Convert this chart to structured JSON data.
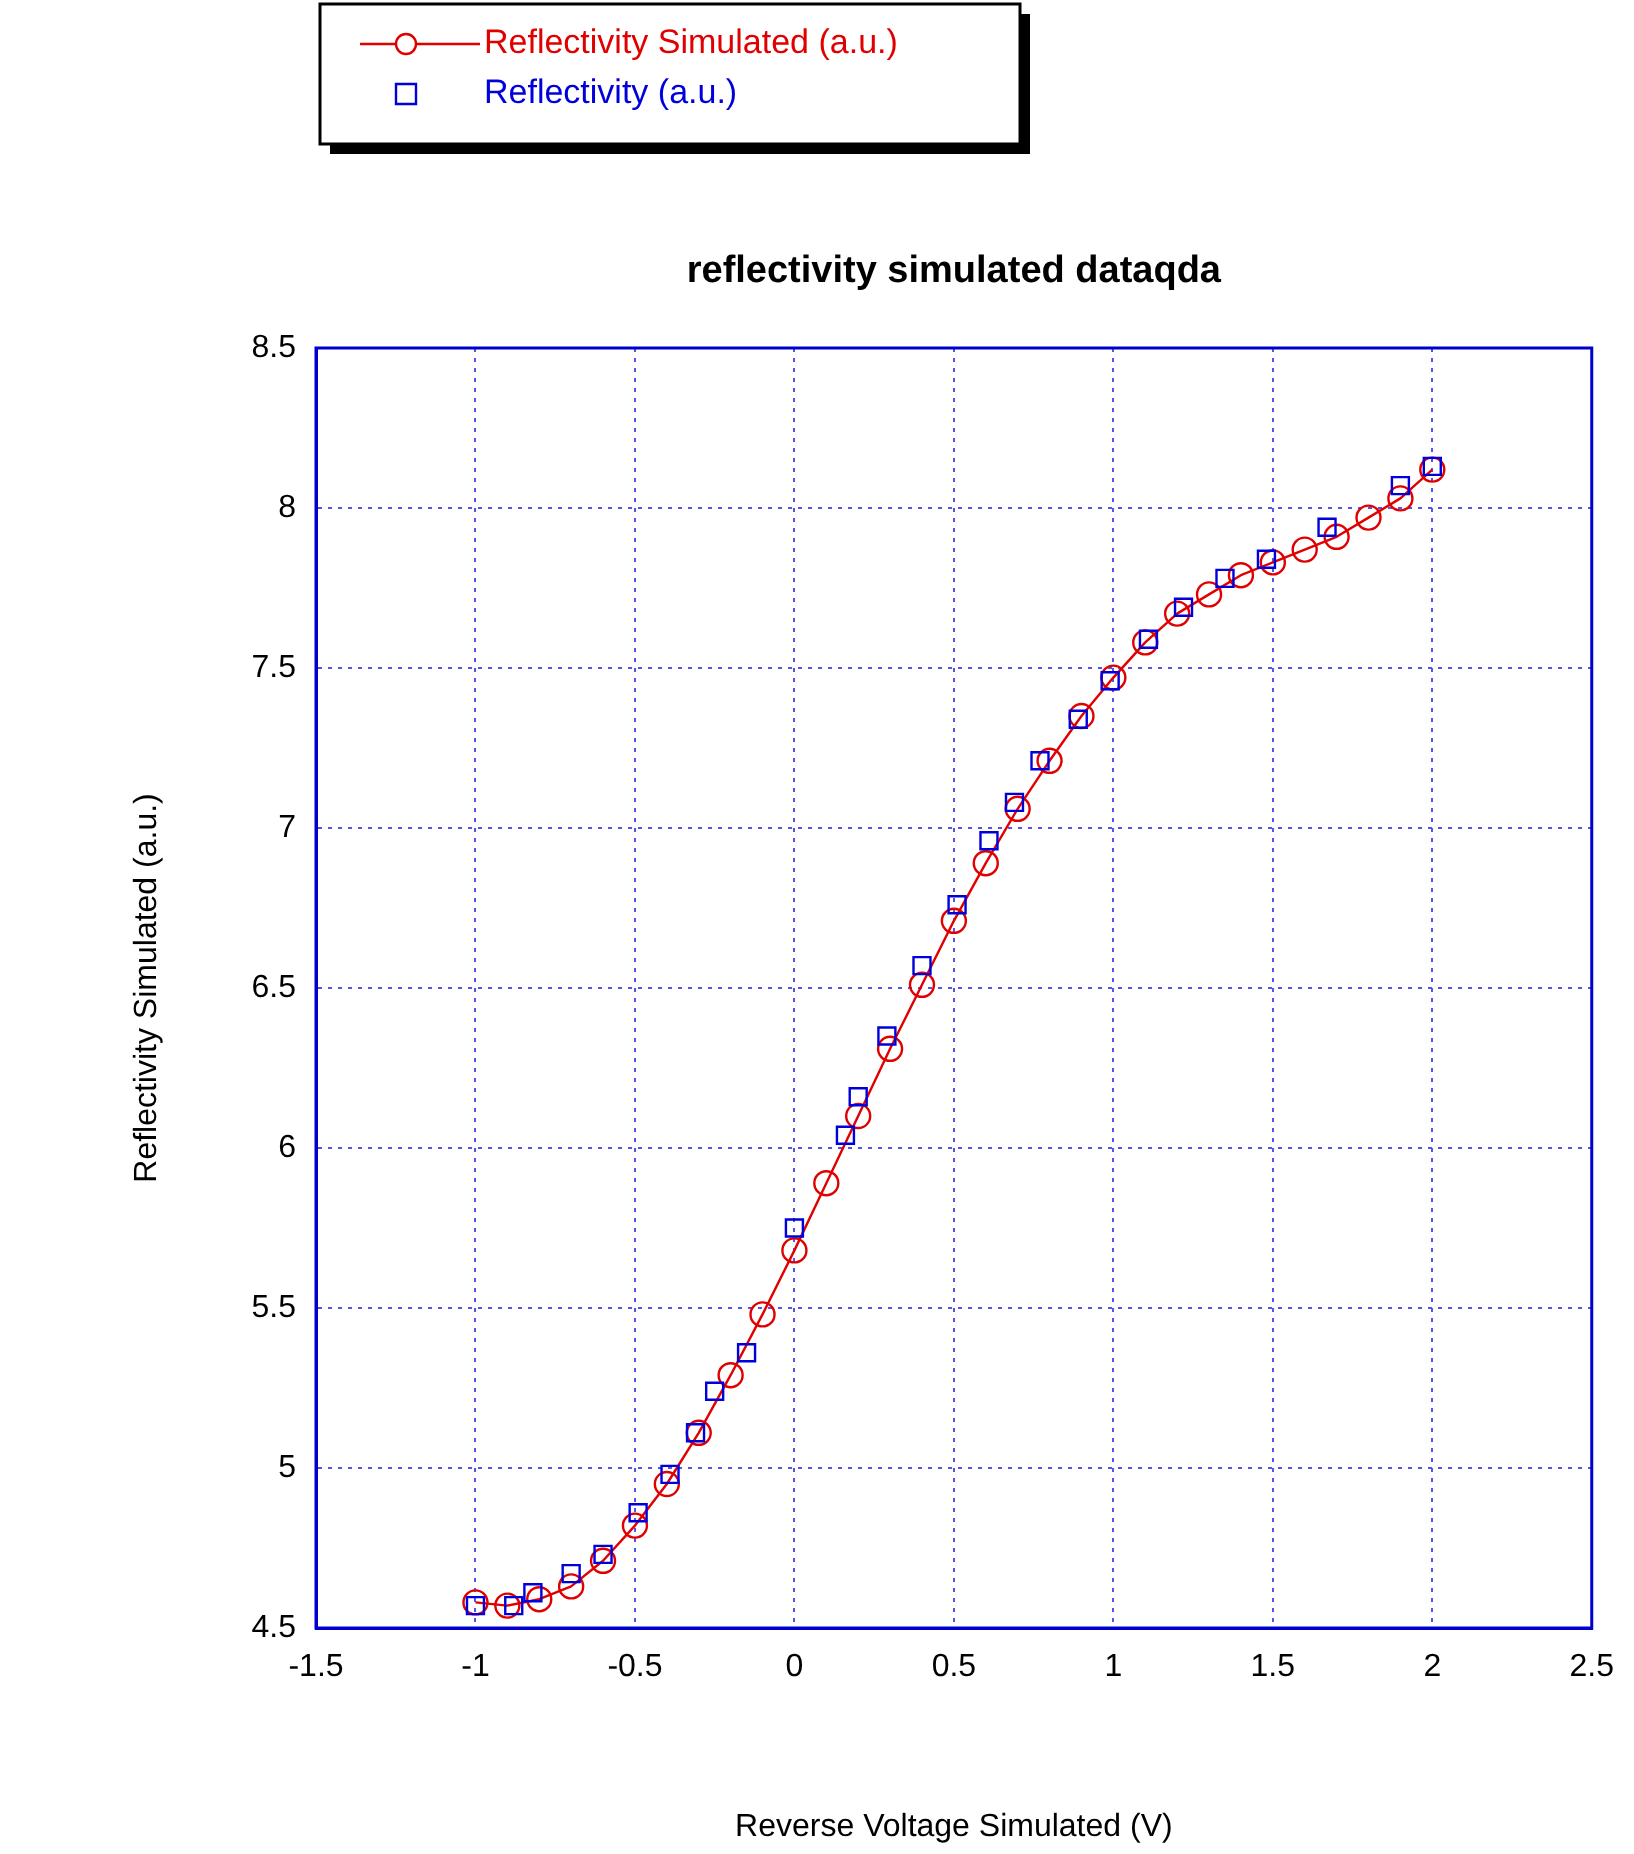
{
  "chart_data": {
    "type": "line",
    "title": "reflectivity simulated dataqda",
    "xlabel": "Reverse Voltage Simulated (V)",
    "ylabel": "Reflectivity Simulated (a.u.)",
    "xlim": [
      -1.5,
      2.5
    ],
    "xticks": [
      -1.5,
      -1,
      -0.5,
      0,
      0.5,
      1,
      1.5,
      2,
      2.5
    ],
    "ylim": [
      4.5,
      8.5
    ],
    "yticks": [
      4.5,
      5,
      5.5,
      6,
      6.5,
      7,
      7.5,
      8,
      8.5
    ],
    "grid": true,
    "legend": "top left",
    "series": [
      {
        "name": "Reflectivity Simulated (a.u.)",
        "color": "#e00000",
        "marker": "circle",
        "line_style": "solid",
        "x": [
          -1,
          -0.9,
          -0.8,
          -0.7,
          -0.6,
          -0.5,
          -0.4,
          -0.3,
          -0.2,
          -0.1,
          0,
          0.1,
          0.2,
          0.3,
          0.4,
          0.5,
          0.6,
          0.7,
          0.8,
          0.9,
          1,
          1.1,
          1.2,
          1.3,
          1.4,
          1.5,
          1.6,
          1.7,
          1.8,
          1.9,
          2
        ],
        "values": [
          4.58,
          4.57,
          4.59,
          4.63,
          4.71,
          4.82,
          4.95,
          5.11,
          5.29,
          5.48,
          5.68,
          5.89,
          6.1,
          6.31,
          6.51,
          6.71,
          6.89,
          7.06,
          7.21,
          7.35,
          7.47,
          7.58,
          7.67,
          7.73,
          7.79,
          7.83,
          7.87,
          7.91,
          7.97,
          8.03,
          8.12
        ]
      },
      {
        "name": "Reflectivity (a.u.)",
        "type": "scatter",
        "color": "#0000dd",
        "marker": "square",
        "x": [
          -1,
          -0.88,
          -0.82,
          -0.7,
          -0.6,
          -0.49,
          -0.39,
          -0.31,
          -0.25,
          -0.15,
          0,
          0.16,
          0.2,
          0.29,
          0.4,
          0.51,
          0.61,
          0.69,
          0.77,
          0.89,
          0.99,
          1.11,
          1.22,
          1.35,
          1.48,
          1.67,
          1.9,
          2
        ],
        "values": [
          4.57,
          4.57,
          4.61,
          4.67,
          4.73,
          4.86,
          4.98,
          5.11,
          5.24,
          5.36,
          5.75,
          6.04,
          6.16,
          6.35,
          6.57,
          6.76,
          6.96,
          7.08,
          7.21,
          7.34,
          7.46,
          7.59,
          7.69,
          7.78,
          7.84,
          7.94,
          8.07,
          8.13
        ]
      }
    ]
  }
}
